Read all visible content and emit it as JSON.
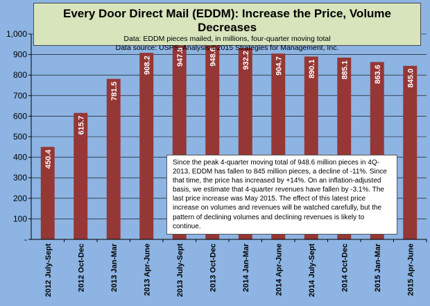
{
  "chart_data": {
    "type": "bar",
    "title": "Every Door Direct Mail (EDDM): Increase the Price, Volume Decreases",
    "subtitle_lines": [
      "Data: EDDM pieces mailed, in millions, four-quarter moving total",
      "Data source: USPS, Analysis ©2015 Strategies for Management, Inc."
    ],
    "categories": [
      "2012 July-Sept",
      "2012 Oct-Dec",
      "2013 Jan-Mar",
      "2013 Apr-June",
      "2013 July-Sept",
      "2013 Oct-Dec",
      "2014 Jan-Mar",
      "2014 Apr-June",
      "2014 July-Sept",
      "2014 Oct-Dec",
      "2015 Jan-Mar",
      "2015 Apr-June"
    ],
    "values": [
      450.4,
      615.7,
      781.5,
      908.2,
      947.8,
      948.6,
      932.2,
      904.7,
      890.1,
      885.1,
      863.6,
      845.0
    ],
    "value_labels": [
      "450.4",
      "615.7",
      "781.5",
      "908.2",
      "947.8",
      "948.6",
      "932.2",
      "904.7",
      "890.1",
      "885.1",
      "863.6",
      "845.0"
    ],
    "ylim": [
      0,
      1000
    ],
    "yticks": [
      0,
      100,
      200,
      300,
      400,
      500,
      600,
      700,
      800,
      900,
      1000
    ],
    "ytick_labels": [
      "-",
      "100",
      "200",
      "300",
      "400",
      "500",
      "600",
      "700",
      "800",
      "900",
      "1,000"
    ],
    "grid": true,
    "annotation": "Since the peak 4-quarter moving total of 948.6 million pieces in 4Q-2013, EDDM has fallen to 845 million pieces, a decline of -11%. Since that time, the price has increased by +14%. On an inflation-adjusted basis, we estimate that 4-quarter revenues have fallen by -3.1%. The last price increase was May 2015. The effect of this latest price increase on volumes and revenues will be watched carefully, but the pattern of declining volumes and declining revenues is likely to continue."
  },
  "colors": {
    "background": "#8db4e2",
    "plot_area": "#8db4e2",
    "title_box": "#d7e4bc",
    "bar": "#953735",
    "gridline": "#000000"
  }
}
